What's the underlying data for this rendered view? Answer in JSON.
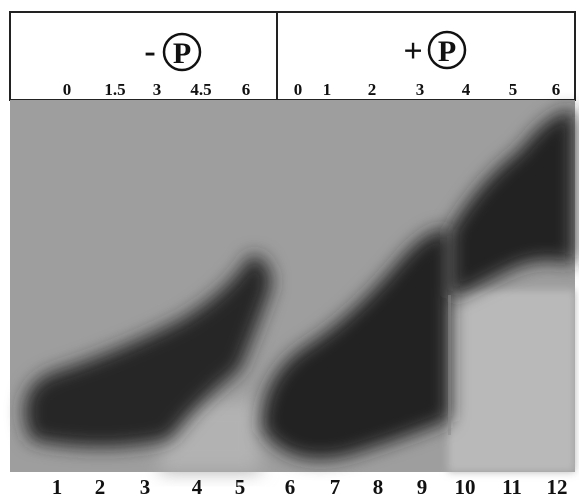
{
  "header": {
    "left": {
      "sign": "-",
      "symbol": "P",
      "timepoints": [
        "0",
        "1.5",
        "3",
        "4.5",
        "6"
      ]
    },
    "right": {
      "sign": "+",
      "symbol": "P",
      "timepoints": [
        "0",
        "1",
        "2",
        "3",
        "4",
        "5",
        "6"
      ]
    }
  },
  "lanes": [
    "1",
    "2",
    "3",
    "4",
    "5",
    "6",
    "7",
    "8",
    "9",
    "10",
    "11",
    "12"
  ]
}
